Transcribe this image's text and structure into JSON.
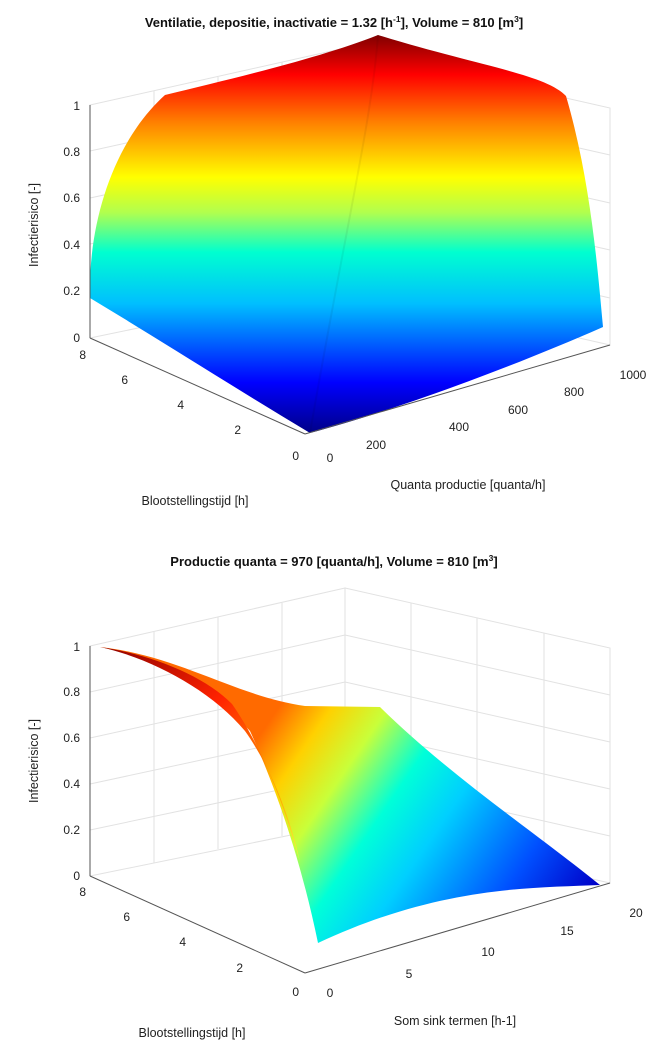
{
  "chart_data": [
    {
      "type": "surface",
      "title_main": "Ventilatie, depositie, inactivatie = 1.32 [h",
      "title_sup1": "-1",
      "title_mid": "], Volume = 810 [m",
      "title_sup2": "3",
      "title_end": "]",
      "xlabel": "Quanta productie [quanta/h]",
      "ylabel": "Blootstellingstijd [h]",
      "zlabel": "Infectierisico [-]",
      "xlim": [
        0,
        1000
      ],
      "ylim": [
        0,
        8
      ],
      "zlim": [
        0,
        1
      ],
      "x_ticks": [
        "0",
        "200",
        "400",
        "600",
        "800",
        "1000"
      ],
      "y_ticks": [
        "0",
        "2",
        "4",
        "6",
        "8"
      ],
      "z_ticks": [
        "0",
        "0.2",
        "0.4",
        "0.6",
        "0.8",
        "1"
      ],
      "colormap": "jet",
      "grid": true,
      "corner_values": [
        {
          "x": 0,
          "y": 0,
          "z": 0
        },
        {
          "x": 1000,
          "y": 0,
          "z": 0.05
        },
        {
          "x": 0,
          "y": 8,
          "z": 0.15
        },
        {
          "x": 1000,
          "y": 8,
          "z": 1.0
        }
      ]
    },
    {
      "type": "surface",
      "title_main": "Productie quanta = 970 [quanta/h], Volume = 810 [m",
      "title_sup": "3",
      "title_end": "]",
      "xlabel": "Som sink termen [h-1]",
      "ylabel": "Blootstellingstijd [h]",
      "zlabel": "Infectierisico [-]",
      "xlim": [
        0,
        20
      ],
      "ylim": [
        0,
        8
      ],
      "zlim": [
        0,
        1
      ],
      "x_ticks": [
        "0",
        "5",
        "10",
        "15",
        "20"
      ],
      "y_ticks": [
        "0",
        "2",
        "4",
        "6",
        "8"
      ],
      "z_ticks": [
        "0",
        "0.2",
        "0.4",
        "0.6",
        "0.8",
        "1"
      ],
      "colormap": "jet",
      "grid": true,
      "corner_values": [
        {
          "x": 0,
          "y": 8,
          "z": 1.0
        },
        {
          "x": 1,
          "y": 0,
          "z": 0.0
        },
        {
          "x": 20,
          "y": 8,
          "z": 0.75
        },
        {
          "x": 20,
          "y": 0,
          "z": 0.0
        }
      ]
    }
  ]
}
